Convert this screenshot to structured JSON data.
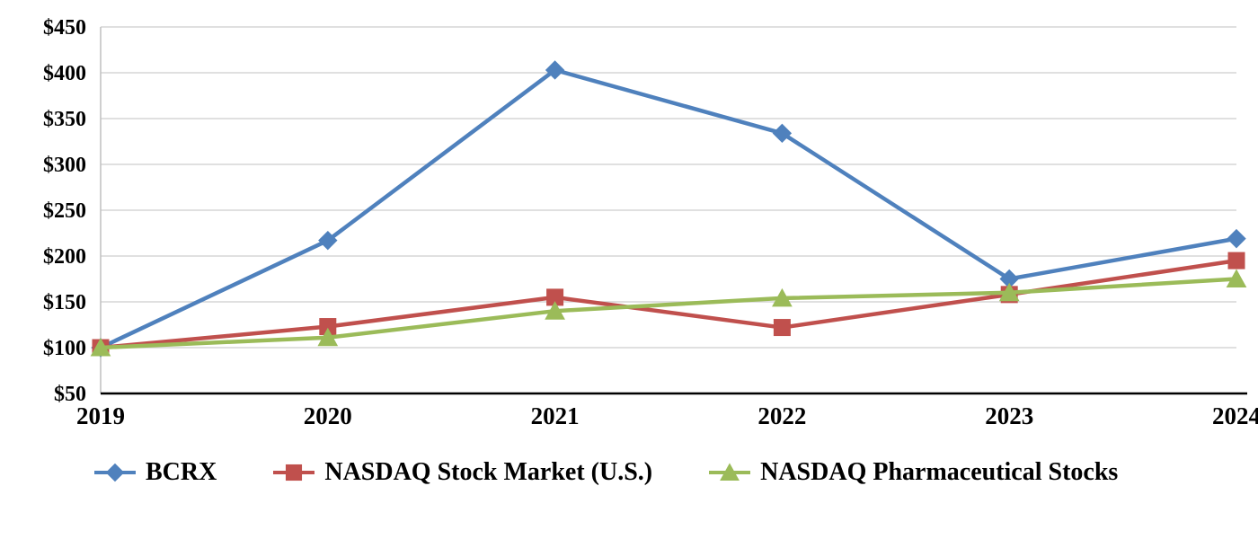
{
  "chart_data": {
    "type": "line",
    "title": "",
    "x_labels": [
      "2019",
      "2020",
      "2021",
      "2022",
      "2023",
      "2024"
    ],
    "series": [
      {
        "name": "BCRX",
        "values": [
          100,
          217,
          403,
          334,
          175,
          219
        ],
        "color": "#4F81BD",
        "marker": "diamond"
      },
      {
        "name": "NASDAQ Stock Market (U.S.)",
        "values": [
          100,
          123,
          155,
          122,
          158,
          195
        ],
        "color": "#C0504D",
        "marker": "square"
      },
      {
        "name": "NASDAQ Pharmaceutical Stocks",
        "values": [
          100,
          111,
          140,
          154,
          160,
          175
        ],
        "color": "#9BBB59",
        "marker": "triangle"
      }
    ],
    "ylim": [
      50,
      450
    ],
    "ytick_step": 50,
    "ytick_labels": [
      "$50",
      "$100",
      "$150",
      "$200",
      "$250",
      "$300",
      "$350",
      "$400",
      "$450"
    ],
    "grid": true,
    "legend_position": "bottom",
    "gridline_color": "#D6D6D6",
    "axis_color": "#000000",
    "left_axis_color": "#BFBFBF",
    "text_color": "#000000"
  }
}
